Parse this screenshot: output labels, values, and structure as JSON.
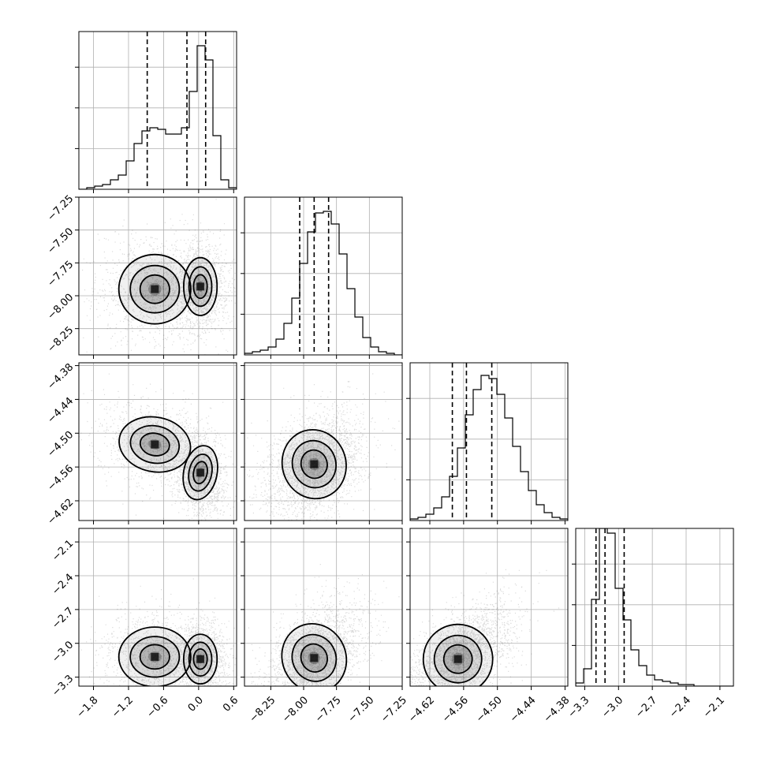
{
  "chart_data": {
    "type": "corner",
    "grid": true,
    "quantiles": [
      0.16,
      0.5,
      0.84
    ],
    "parameters": [
      {
        "id": "p0",
        "range": [
          -2.05,
          0.65
        ],
        "ticks": [
          -1.8,
          -1.2,
          -0.6,
          0.0,
          0.6
        ],
        "tick_labels": [
          "−1.8",
          "−1.2",
          "−0.6",
          "0.0",
          "0.6"
        ],
        "quantile_values": [
          -0.88,
          -0.2,
          0.12
        ],
        "hist": [
          0.0,
          0.01,
          0.02,
          0.03,
          0.06,
          0.09,
          0.18,
          0.29,
          0.37,
          0.39,
          0.38,
          0.35,
          0.35,
          0.39,
          0.62,
          0.91,
          0.82,
          0.34,
          0.06,
          0.01
        ]
      },
      {
        "id": "p1",
        "range": [
          -8.45,
          -7.25
        ],
        "ticks": [
          -8.25,
          -8.0,
          -7.75,
          -7.5,
          -7.25
        ],
        "tick_labels": [
          "−8.25",
          "−8.00",
          "−7.75",
          "−7.50",
          "−7.25"
        ],
        "quantile_values": [
          -8.03,
          -7.92,
          -7.81
        ],
        "hist": [
          0.01,
          0.02,
          0.03,
          0.05,
          0.1,
          0.2,
          0.36,
          0.58,
          0.78,
          0.9,
          0.91,
          0.83,
          0.64,
          0.42,
          0.24,
          0.11,
          0.05,
          0.02,
          0.01,
          0.0
        ]
      },
      {
        "id": "p2",
        "range": [
          -4.655,
          -4.375
        ],
        "ticks": [
          -4.62,
          -4.56,
          -4.5,
          -4.44,
          -4.38
        ],
        "tick_labels": [
          "−4.62",
          "−4.56",
          "−4.50",
          "−4.44",
          "−4.38"
        ],
        "quantile_values": [
          -4.58,
          -4.555,
          -4.51
        ],
        "hist": [
          0.01,
          0.02,
          0.04,
          0.08,
          0.15,
          0.28,
          0.46,
          0.67,
          0.83,
          0.92,
          0.9,
          0.8,
          0.65,
          0.47,
          0.31,
          0.19,
          0.1,
          0.05,
          0.02,
          0.01
        ]
      },
      {
        "id": "p3",
        "range": [
          -3.38,
          -1.98
        ],
        "ticks": [
          -3.3,
          -3.0,
          -2.7,
          -2.4,
          -2.1
        ],
        "tick_labels": [
          "−3.3",
          "−3.0",
          "−2.7",
          "−2.4",
          "−2.1"
        ],
        "quantile_values": [
          -3.2,
          -3.12,
          -2.95
        ],
        "hist": [
          0.02,
          0.11,
          0.55,
          1.0,
          0.97,
          0.62,
          0.42,
          0.23,
          0.13,
          0.07,
          0.04,
          0.03,
          0.02,
          0.01,
          0.01,
          0.0,
          0.0,
          0.0,
          0.0,
          0.0
        ]
      }
    ],
    "joint_modes": [
      {
        "pair": [
          "p0",
          "p1"
        ],
        "modes": [
          {
            "center": [
              0.03,
              -7.93
            ],
            "sd": [
              0.13,
              0.1
            ],
            "weight": 0.55,
            "rho": 0.0
          },
          {
            "center": [
              -0.75,
              -7.95
            ],
            "sd": [
              0.28,
              0.12
            ],
            "weight": 0.45,
            "rho": 0.0
          }
        ]
      },
      {
        "pair": [
          "p0",
          "p2"
        ],
        "modes": [
          {
            "center": [
              0.03,
              -4.57
            ],
            "sd": [
              0.13,
              0.022
            ],
            "weight": 0.55,
            "rho": -0.2
          },
          {
            "center": [
              -0.75,
              -4.52
            ],
            "sd": [
              0.28,
              0.022
            ],
            "weight": 0.45,
            "rho": -0.2
          }
        ]
      },
      {
        "pair": [
          "p0",
          "p3"
        ],
        "modes": [
          {
            "center": [
              0.03,
              -3.14
            ],
            "sd": [
              0.13,
              0.1
            ],
            "weight": 0.55,
            "rho": 0.0
          },
          {
            "center": [
              -0.75,
              -3.12
            ],
            "sd": [
              0.28,
              0.12
            ],
            "weight": 0.45,
            "rho": 0.0
          }
        ]
      },
      {
        "pair": [
          "p1",
          "p2"
        ],
        "modes": [
          {
            "center": [
              -7.92,
              -4.555
            ],
            "sd": [
              0.11,
              0.028
            ],
            "weight": 1.0,
            "rho": 0.3
          }
        ]
      },
      {
        "pair": [
          "p1",
          "p3"
        ],
        "modes": [
          {
            "center": [
              -7.92,
              -3.13
            ],
            "sd": [
              0.11,
              0.14
            ],
            "weight": 1.0,
            "rho": 0.45
          }
        ]
      },
      {
        "pair": [
          "p2",
          "p3"
        ],
        "modes": [
          {
            "center": [
              -4.57,
              -3.14
            ],
            "sd": [
              0.028,
              0.14
            ],
            "weight": 1.0,
            "rho": 0.55
          }
        ]
      }
    ]
  },
  "colors": {
    "ink": "#000000",
    "grid": "#b0b0b0",
    "background": "#ffffff"
  }
}
